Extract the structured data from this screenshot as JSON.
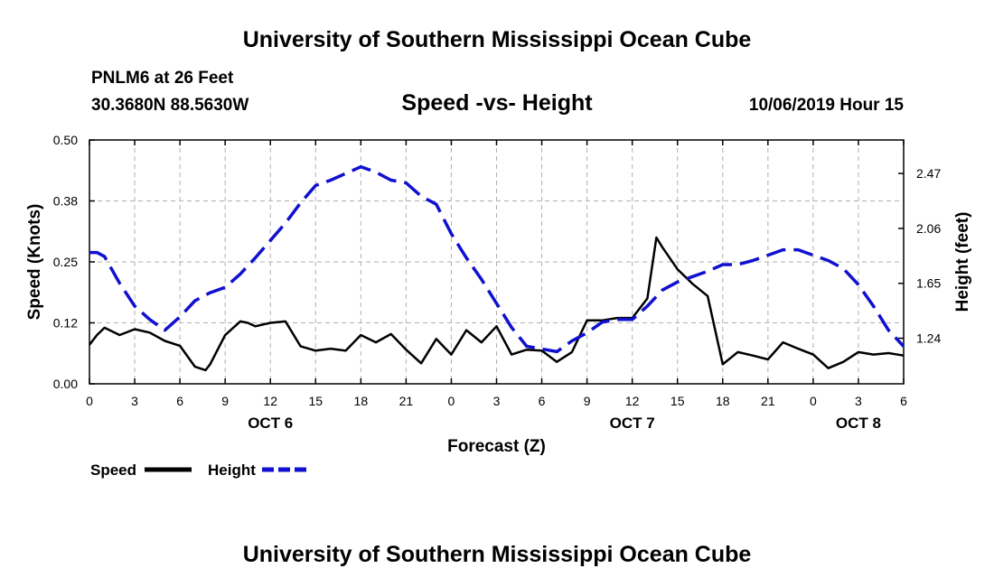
{
  "header": {
    "title": "University of Southern Mississippi Ocean Cube",
    "station": "PNLM6 at 26 Feet",
    "coords": "30.3680N 88.5630W",
    "datetime": "10/06/2019 Hour 15"
  },
  "footer": {
    "title": "University of Southern Mississippi Ocean Cube"
  },
  "colors": {
    "speed": "#000000",
    "height": "#1010d0",
    "grid": "#b0b0b0"
  },
  "chart_data": {
    "type": "line",
    "title": "Speed -vs- Height",
    "xlabel": "Forecast (Z)",
    "ylabel": "Speed (Knots)",
    "y2label": "Height (feet)",
    "xlim": [
      0,
      54
    ],
    "ylim": [
      0,
      0.5
    ],
    "y2lim": [
      0.9,
      2.72
    ],
    "x_ticks": [
      0,
      3,
      6,
      9,
      12,
      15,
      18,
      21,
      24,
      27,
      30,
      33,
      36,
      39,
      42,
      45,
      48,
      51,
      54
    ],
    "x_tick_labels": [
      "0",
      "3",
      "6",
      "9",
      "12",
      "15",
      "18",
      "21",
      "0",
      "3",
      "6",
      "9",
      "12",
      "15",
      "18",
      "21",
      "0",
      "3",
      "6"
    ],
    "y_ticks": [
      0,
      0.125,
      0.25,
      0.375,
      0.5
    ],
    "y_tick_labels": [
      "0.00",
      "0.12",
      "0.25",
      "0.38",
      "0.50"
    ],
    "y2_ticks": [
      1.24,
      1.65,
      2.06,
      2.47
    ],
    "y2_tick_labels": [
      "1.24",
      "1.65",
      "2.06",
      "2.47"
    ],
    "day_labels": [
      {
        "x": 12,
        "label": "OCT 6"
      },
      {
        "x": 36,
        "label": "OCT 7"
      },
      {
        "x": 51,
        "label": "OCT 8"
      }
    ],
    "grid": true,
    "legend": [
      {
        "name": "Speed",
        "style": "solid"
      },
      {
        "name": "Height",
        "style": "dashed"
      }
    ],
    "series": [
      {
        "name": "Speed",
        "axis": "left",
        "style": "solid",
        "x": [
          0,
          0.5,
          1,
          2,
          3,
          4,
          5,
          6,
          7,
          7.7,
          8,
          9,
          10,
          10.5,
          11,
          12,
          13,
          14,
          15,
          16,
          17,
          18,
          19,
          20,
          21,
          22,
          23,
          24,
          25,
          26,
          27,
          28,
          29,
          30,
          31,
          32,
          33,
          34,
          35,
          36,
          37,
          37.6,
          38,
          39,
          40,
          41,
          42,
          42.6,
          43,
          44,
          45,
          46,
          47,
          48,
          49,
          50,
          51,
          52,
          53,
          54
        ],
        "y": [
          0.08,
          0.1,
          0.115,
          0.1,
          0.112,
          0.105,
          0.088,
          0.078,
          0.035,
          0.028,
          0.04,
          0.1,
          0.128,
          0.125,
          0.118,
          0.125,
          0.128,
          0.077,
          0.068,
          0.072,
          0.068,
          0.1,
          0.085,
          0.102,
          0.07,
          0.042,
          0.092,
          0.06,
          0.11,
          0.085,
          0.118,
          0.06,
          0.07,
          0.068,
          0.045,
          0.065,
          0.13,
          0.13,
          0.135,
          0.135,
          0.175,
          0.3,
          0.28,
          0.235,
          0.205,
          0.18,
          0.04,
          0.055,
          0.065,
          0.058,
          0.05,
          0.085,
          0.072,
          0.06,
          0.032,
          0.045,
          0.065,
          0.06,
          0.063,
          0.058
        ]
      },
      {
        "name": "Height",
        "axis": "right",
        "style": "dashed",
        "x": [
          0,
          0.5,
          1,
          2,
          3,
          4,
          5,
          6,
          7,
          8,
          9,
          10,
          11,
          12,
          13,
          14,
          15,
          16,
          17,
          18,
          19,
          20,
          21,
          22,
          23,
          24,
          25,
          26,
          27,
          28,
          29,
          30,
          31,
          32,
          33,
          34,
          35,
          36,
          37,
          38,
          39,
          40,
          41,
          42,
          43,
          44,
          45,
          46,
          47,
          48,
          49,
          50,
          51,
          52,
          53,
          54
        ],
        "y": [
          1.88,
          1.88,
          1.85,
          1.65,
          1.48,
          1.38,
          1.3,
          1.4,
          1.52,
          1.58,
          1.62,
          1.72,
          1.84,
          1.97,
          2.1,
          2.25,
          2.38,
          2.42,
          2.47,
          2.52,
          2.48,
          2.42,
          2.4,
          2.3,
          2.24,
          2.02,
          1.84,
          1.68,
          1.5,
          1.32,
          1.18,
          1.16,
          1.14,
          1.22,
          1.28,
          1.36,
          1.38,
          1.38,
          1.48,
          1.6,
          1.66,
          1.7,
          1.74,
          1.79,
          1.79,
          1.82,
          1.86,
          1.9,
          1.9,
          1.86,
          1.82,
          1.76,
          1.64,
          1.48,
          1.3,
          1.18
        ]
      }
    ]
  }
}
